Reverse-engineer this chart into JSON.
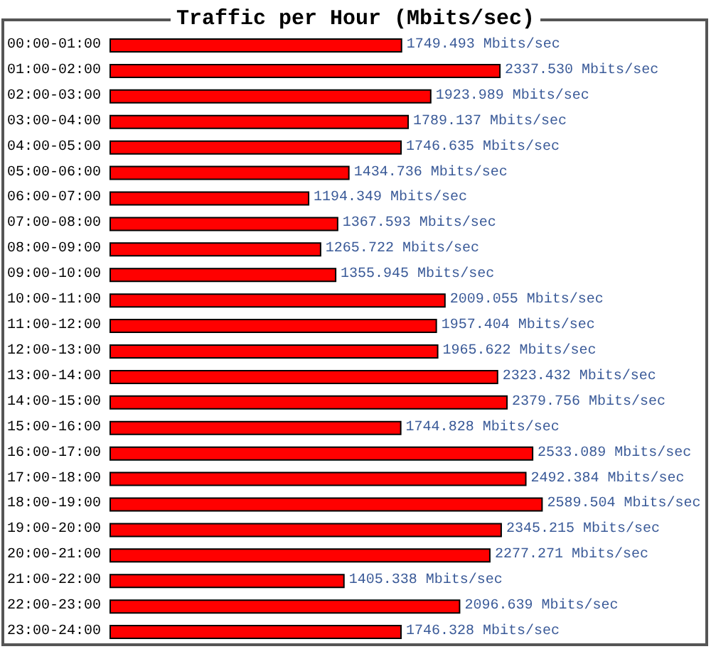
{
  "chart_data": {
    "type": "bar",
    "orientation": "horizontal",
    "title": "Traffic per Hour (Mbits/sec)",
    "categories": [
      "00:00-01:00",
      "01:00-02:00",
      "02:00-03:00",
      "03:00-04:00",
      "04:00-05:00",
      "05:00-06:00",
      "06:00-07:00",
      "07:00-08:00",
      "08:00-09:00",
      "09:00-10:00",
      "10:00-11:00",
      "11:00-12:00",
      "12:00-13:00",
      "13:00-14:00",
      "14:00-15:00",
      "15:00-16:00",
      "16:00-17:00",
      "17:00-18:00",
      "18:00-19:00",
      "19:00-20:00",
      "20:00-21:00",
      "21:00-22:00",
      "22:00-23:00",
      "23:00-24:00"
    ],
    "values": [
      1749.493,
      2337.53,
      1923.989,
      1789.137,
      1746.635,
      1434.736,
      1194.349,
      1367.593,
      1265.722,
      1355.945,
      2009.055,
      1957.404,
      1965.622,
      2323.432,
      2379.756,
      1744.828,
      2533.089,
      2492.384,
      2589.504,
      2345.215,
      2277.271,
      1405.338,
      2096.639,
      1746.328
    ],
    "color": "#ff0000",
    "value_labels": [
      "1749.493 Mbits/sec",
      "2337.530 Mbits/sec",
      "1923.989 Mbits/sec",
      "1789.137 Mbits/sec",
      "1746.635 Mbits/sec",
      "1434.736 Mbits/sec",
      "1194.349 Mbits/sec",
      "1367.593 Mbits/sec",
      "1265.722 Mbits/sec",
      "1355.945 Mbits/sec",
      "2009.055 Mbits/sec",
      "1957.404 Mbits/sec",
      "1965.622 Mbits/sec",
      "2323.432 Mbits/sec",
      "2379.756 Mbits/sec",
      "1744.828 Mbits/sec",
      "2533.089 Mbits/sec",
      "2492.384 Mbits/sec",
      "2589.504 Mbits/sec",
      "2345.215 Mbits/sec",
      "2277.271 Mbits/sec",
      "1405.338 Mbits/sec",
      "2096.639 Mbits/sec",
      "1746.328 Mbits/sec"
    ]
  }
}
